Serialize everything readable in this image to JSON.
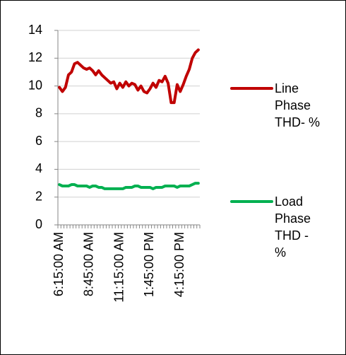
{
  "chart_data": {
    "type": "line",
    "categories": [
      "6:15:00 AM",
      null,
      null,
      null,
      null,
      null,
      null,
      null,
      null,
      null,
      "8:45:00 AM",
      null,
      null,
      null,
      null,
      null,
      null,
      null,
      null,
      null,
      "11:15:00 AM",
      null,
      null,
      null,
      null,
      null,
      null,
      null,
      null,
      null,
      "1:45:00 PM",
      null,
      null,
      null,
      null,
      null,
      null,
      null,
      null,
      null,
      "4:15:00 PM",
      null,
      null,
      null,
      null,
      null,
      null
    ],
    "series": [
      {
        "name": "Line Phase THD- %",
        "color": "#c00000",
        "values": [
          9.9,
          9.6,
          9.9,
          10.8,
          11.0,
          11.6,
          11.7,
          11.5,
          11.3,
          11.2,
          11.3,
          11.1,
          10.8,
          11.1,
          10.8,
          10.6,
          10.4,
          10.2,
          10.3,
          9.8,
          10.2,
          9.9,
          10.3,
          10.0,
          10.2,
          10.1,
          9.7,
          10.0,
          9.6,
          9.5,
          9.8,
          10.2,
          9.9,
          10.4,
          10.3,
          10.7,
          10.2,
          8.8,
          8.8,
          10.1,
          9.6,
          10.1,
          10.7,
          11.2,
          12.0,
          12.4,
          12.6
        ]
      },
      {
        "name": "Load Phase THD - %",
        "color": "#00b050",
        "values": [
          2.9,
          2.8,
          2.8,
          2.8,
          2.9,
          2.9,
          2.8,
          2.8,
          2.8,
          2.8,
          2.7,
          2.8,
          2.8,
          2.7,
          2.7,
          2.6,
          2.6,
          2.6,
          2.6,
          2.6,
          2.6,
          2.6,
          2.7,
          2.7,
          2.7,
          2.8,
          2.8,
          2.7,
          2.7,
          2.7,
          2.7,
          2.6,
          2.7,
          2.7,
          2.7,
          2.8,
          2.8,
          2.8,
          2.8,
          2.7,
          2.8,
          2.8,
          2.8,
          2.8,
          2.9,
          3.0,
          3.0
        ]
      }
    ],
    "ylim": [
      0,
      14
    ],
    "yticks": [
      0,
      2,
      4,
      6,
      8,
      10,
      12,
      14
    ],
    "grid": true,
    "legend": "right"
  }
}
